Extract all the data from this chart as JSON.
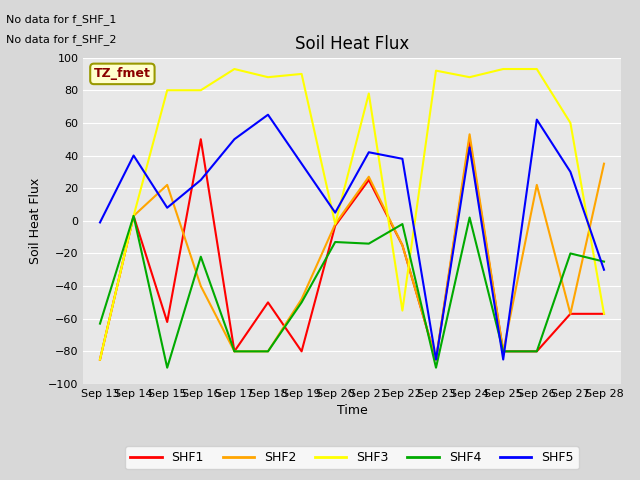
{
  "title": "Soil Heat Flux",
  "xlabel": "Time",
  "ylabel": "Soil Heat Flux",
  "ylim": [
    -100,
    100
  ],
  "text_no_data": [
    "No data for f_SHF_1",
    "No data for f_SHF_2"
  ],
  "tz_label": "TZ_fmet",
  "x_labels": [
    "Sep 13",
    "Sep 14",
    "Sep 15",
    "Sep 16",
    "Sep 17",
    "Sep 18",
    "Sep 19",
    "Sep 20",
    "Sep 21",
    "Sep 22",
    "Sep 23",
    "Sep 24",
    "Sep 25",
    "Sep 26",
    "Sep 27",
    "Sep 28"
  ],
  "series": {
    "SHF1": {
      "color": "#ff0000",
      "values": [
        -85,
        3,
        -62,
        50,
        -80,
        -50,
        -80,
        -3,
        25,
        -15,
        -85,
        50,
        -80,
        -80,
        -57,
        -57
      ]
    },
    "SHF2": {
      "color": "#ffa500",
      "values": [
        -85,
        3,
        22,
        -40,
        -80,
        -80,
        -48,
        -2,
        27,
        -15,
        -85,
        53,
        -80,
        22,
        -57,
        35
      ]
    },
    "SHF3": {
      "color": "#ffff00",
      "values": [
        -85,
        3,
        80,
        80,
        93,
        88,
        90,
        -2,
        78,
        -55,
        92,
        88,
        93,
        93,
        60,
        -57
      ]
    },
    "SHF4": {
      "color": "#00aa00",
      "values": [
        -63,
        3,
        -90,
        -22,
        -80,
        -80,
        -50,
        -13,
        -14,
        -2,
        -90,
        2,
        -80,
        -80,
        -20,
        -25
      ]
    },
    "SHF5": {
      "color": "#0000ff",
      "values": [
        -1,
        40,
        8,
        25,
        50,
        65,
        35,
        5,
        42,
        38,
        -85,
        45,
        -85,
        62,
        30,
        -30
      ]
    }
  },
  "legend_entries": [
    "SHF1",
    "SHF2",
    "SHF3",
    "SHF4",
    "SHF5"
  ],
  "legend_colors": [
    "#ff0000",
    "#ffa500",
    "#ffff00",
    "#00aa00",
    "#0000ff"
  ],
  "fig_bg_color": "#d8d8d8",
  "plot_bg_color": "#e8e8e8",
  "grid_color": "#ffffff",
  "no_data_fontsize": 8,
  "tz_fontsize": 9,
  "title_fontsize": 12,
  "axis_fontsize": 9,
  "tick_fontsize": 8,
  "legend_fontsize": 9,
  "linewidth": 1.5
}
